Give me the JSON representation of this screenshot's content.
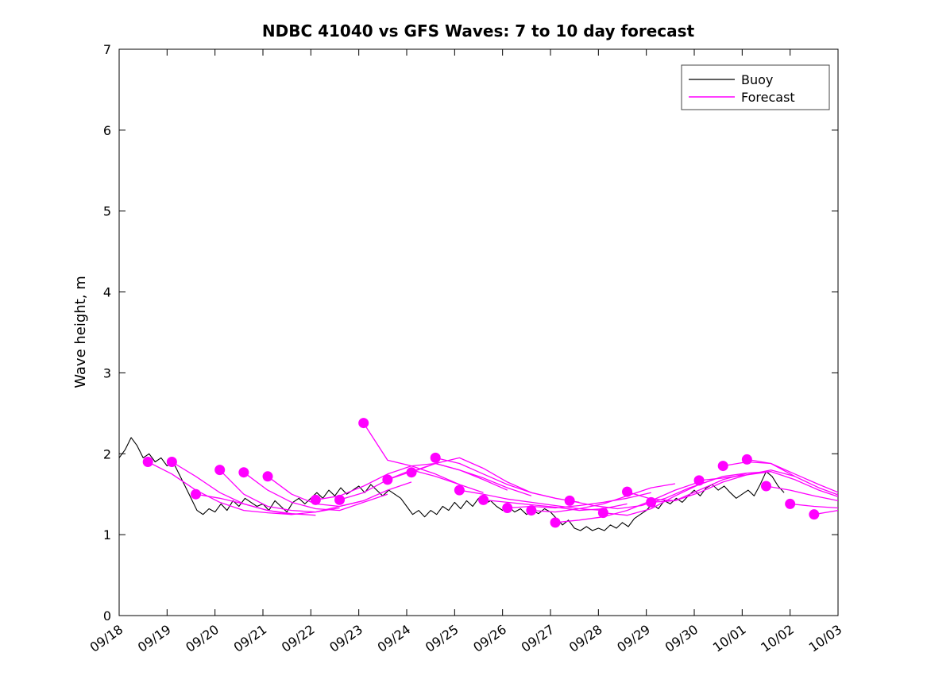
{
  "figure": {
    "title": "NDBC 41040 vs GFS Waves: 7 to 10 day forecast",
    "ylabel": "Wave height, m"
  },
  "legend": {
    "items": [
      {
        "label": "Buoy",
        "color": "#000000"
      },
      {
        "label": "Forecast",
        "color": "#ff00ff"
      }
    ]
  },
  "chart_data": {
    "type": "line",
    "title": "NDBC 41040 vs GFS Waves: 7 to 10 day forecast",
    "xlabel": "",
    "ylabel": "Wave height, m",
    "ylim": [
      0,
      7
    ],
    "y_ticks": [
      0,
      1,
      2,
      3,
      4,
      5,
      6,
      7
    ],
    "x_range_days": [
      0,
      15
    ],
    "x_tick_labels": [
      "09/18",
      "09/19",
      "09/20",
      "09/21",
      "09/22",
      "09/23",
      "09/24",
      "09/25",
      "09/26",
      "09/27",
      "09/28",
      "09/29",
      "09/30",
      "10/01",
      "10/02",
      "10/03"
    ],
    "grid": false,
    "legend_position": "top-right",
    "colors": {
      "buoy": "#000000",
      "forecast": "#ff00ff"
    },
    "buoy": {
      "x_start": 0,
      "x_step": 0.125,
      "y": [
        1.95,
        2.05,
        2.2,
        2.1,
        1.95,
        2.0,
        1.9,
        1.95,
        1.85,
        1.9,
        1.75,
        1.6,
        1.45,
        1.3,
        1.25,
        1.32,
        1.28,
        1.38,
        1.3,
        1.42,
        1.35,
        1.45,
        1.4,
        1.35,
        1.38,
        1.3,
        1.42,
        1.35,
        1.28,
        1.4,
        1.45,
        1.38,
        1.45,
        1.52,
        1.45,
        1.55,
        1.48,
        1.58,
        1.5,
        1.55,
        1.6,
        1.52,
        1.62,
        1.55,
        1.48,
        1.55,
        1.5,
        1.45,
        1.35,
        1.25,
        1.3,
        1.22,
        1.3,
        1.25,
        1.35,
        1.3,
        1.4,
        1.32,
        1.42,
        1.35,
        1.45,
        1.38,
        1.42,
        1.35,
        1.3,
        1.35,
        1.28,
        1.32,
        1.25,
        1.3,
        1.26,
        1.32,
        1.28,
        1.2,
        1.12,
        1.18,
        1.08,
        1.05,
        1.1,
        1.05,
        1.08,
        1.05,
        1.12,
        1.08,
        1.15,
        1.1,
        1.2,
        1.25,
        1.3,
        1.38,
        1.32,
        1.42,
        1.38,
        1.45,
        1.4,
        1.48,
        1.55,
        1.48,
        1.58,
        1.62,
        1.55,
        1.6,
        1.52,
        1.45,
        1.5,
        1.55,
        1.48,
        1.62,
        1.78,
        1.72,
        1.6,
        1.52
      ]
    },
    "forecast_runs": [
      {
        "start": 0.6,
        "step": 0.5,
        "y": [
          1.9,
          1.75,
          1.55,
          1.4,
          1.3,
          1.27,
          1.25
        ]
      },
      {
        "start": 1.1,
        "step": 0.5,
        "y": [
          1.9,
          1.72,
          1.52,
          1.38,
          1.3,
          1.26,
          1.24
        ]
      },
      {
        "start": 1.6,
        "step": 0.5,
        "y": [
          1.5,
          1.45,
          1.38,
          1.3,
          1.25,
          1.28,
          1.33
        ]
      },
      {
        "start": 2.1,
        "step": 0.5,
        "y": [
          1.8,
          1.5,
          1.35,
          1.3,
          1.28,
          1.35,
          1.42
        ]
      },
      {
        "start": 2.6,
        "step": 0.5,
        "y": [
          1.77,
          1.55,
          1.4,
          1.32,
          1.3,
          1.4,
          1.5
        ]
      },
      {
        "start": 3.1,
        "step": 0.5,
        "y": [
          1.72,
          1.5,
          1.38,
          1.35,
          1.42,
          1.55,
          1.65
        ]
      },
      {
        "start": 4.1,
        "step": 0.5,
        "y": [
          1.43,
          1.48,
          1.6,
          1.75,
          1.85,
          1.75,
          1.62
        ]
      },
      {
        "start": 4.6,
        "step": 0.5,
        "y": [
          1.43,
          1.52,
          1.68,
          1.8,
          1.72,
          1.62,
          1.52
        ]
      },
      {
        "start": 5.1,
        "step": 0.5,
        "y": [
          2.38,
          1.92,
          1.85,
          1.88,
          1.8,
          1.68,
          1.55
        ]
      },
      {
        "start": 5.6,
        "step": 0.5,
        "y": [
          1.68,
          1.78,
          1.88,
          1.8,
          1.7,
          1.58,
          1.48
        ]
      },
      {
        "start": 6.1,
        "step": 0.5,
        "y": [
          1.77,
          1.88,
          1.95,
          1.82,
          1.65,
          1.52,
          1.45
        ]
      },
      {
        "start": 6.6,
        "step": 0.5,
        "y": [
          1.95,
          1.88,
          1.75,
          1.62,
          1.52,
          1.45,
          1.4
        ]
      },
      {
        "start": 7.1,
        "step": 0.5,
        "y": [
          1.55,
          1.5,
          1.44,
          1.4,
          1.36,
          1.32,
          1.3
        ]
      },
      {
        "start": 7.6,
        "step": 0.5,
        "y": [
          1.43,
          1.4,
          1.37,
          1.34,
          1.3,
          1.32,
          1.38
        ]
      },
      {
        "start": 8.1,
        "step": 0.5,
        "y": [
          1.33,
          1.35,
          1.33,
          1.36,
          1.4,
          1.45,
          1.52
        ]
      },
      {
        "start": 8.6,
        "step": 0.5,
        "y": [
          1.3,
          1.28,
          1.32,
          1.38,
          1.48,
          1.58,
          1.63
        ]
      },
      {
        "start": 9.1,
        "step": 0.5,
        "y": [
          1.15,
          1.18,
          1.22,
          1.3,
          1.42,
          1.55,
          1.65
        ]
      },
      {
        "start": 9.4,
        "step": 0.5,
        "y": [
          1.42,
          1.36,
          1.32,
          1.36,
          1.45,
          1.58,
          1.68
        ]
      },
      {
        "start": 10.1,
        "step": 0.5,
        "y": [
          1.27,
          1.24,
          1.32,
          1.48,
          1.62,
          1.72,
          1.76
        ]
      },
      {
        "start": 10.6,
        "step": 0.5,
        "y": [
          1.53,
          1.44,
          1.42,
          1.55,
          1.68,
          1.76,
          1.78
        ]
      },
      {
        "start": 11.1,
        "step": 0.5,
        "y": [
          1.4,
          1.42,
          1.52,
          1.65,
          1.74,
          1.8,
          1.72
        ]
      },
      {
        "start": 12.1,
        "step": 0.5,
        "y": [
          1.67,
          1.7,
          1.74,
          1.78,
          1.68,
          1.55,
          1.45
        ]
      },
      {
        "start": 12.6,
        "step": 0.5,
        "y": [
          1.85,
          1.9,
          1.88,
          1.75,
          1.62,
          1.5
        ]
      },
      {
        "start": 13.1,
        "step": 0.5,
        "y": [
          1.93,
          1.88,
          1.72,
          1.58,
          1.47
        ]
      },
      {
        "start": 13.5,
        "step": 0.5,
        "y": [
          1.6,
          1.55,
          1.48,
          1.42
        ]
      },
      {
        "start": 14.0,
        "step": 0.5,
        "y": [
          1.38,
          1.35,
          1.33
        ]
      },
      {
        "start": 14.5,
        "step": 0.5,
        "y": [
          1.25,
          1.3
        ]
      }
    ]
  }
}
